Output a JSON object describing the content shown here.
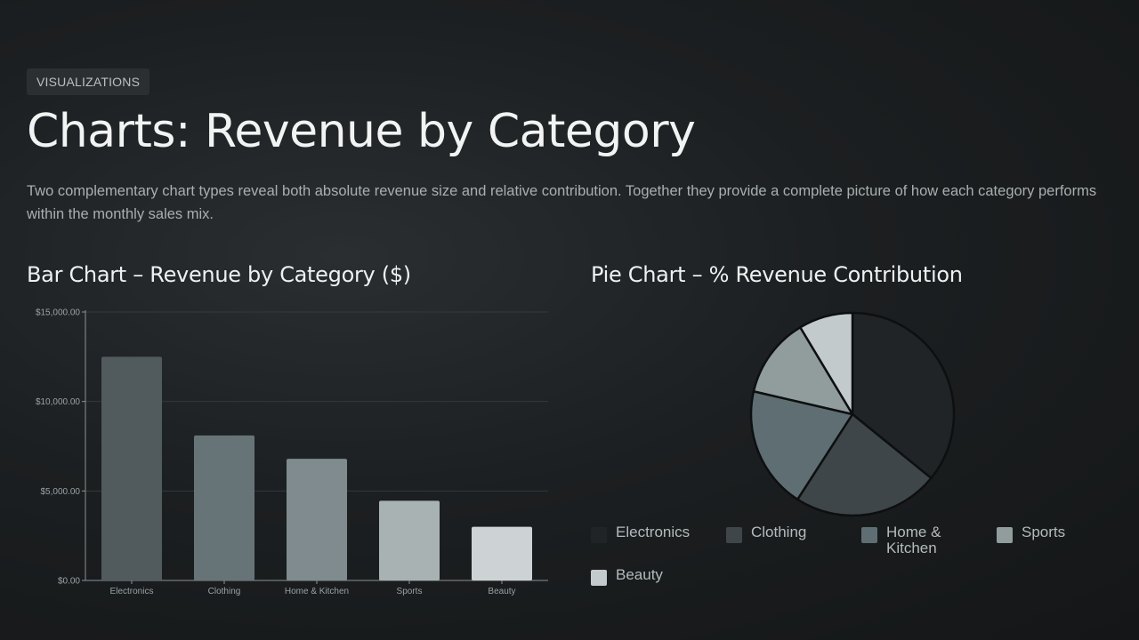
{
  "header": {
    "tag": "VISUALIZATIONS",
    "title": "Charts: Revenue by Category",
    "description": "Two complementary chart types reveal both absolute revenue size and relative contribution. Together they provide a complete picture of how each category performs within the monthly sales mix."
  },
  "chart_data": [
    {
      "type": "bar",
      "title": "Bar Chart – Revenue by Category ($)",
      "xlabel": "",
      "ylabel": "",
      "categories": [
        "Electronics",
        "Clothing",
        "Home & Kitchen",
        "Sports",
        "Beauty"
      ],
      "values": [
        12500,
        8100,
        6800,
        4450,
        3000
      ],
      "ylim": [
        0,
        15000
      ],
      "yticks": [
        0,
        5000,
        10000,
        15000
      ],
      "ytick_labels": [
        "$0.00",
        "$5,000.00",
        "$10,000.00",
        "$15,000.00"
      ],
      "grid": true,
      "colors": [
        "#515a5d",
        "#677477",
        "#7f8b8e",
        "#a8b2b2",
        "#cdd3d4"
      ]
    },
    {
      "type": "pie",
      "title": "Pie Chart – % Revenue Contribution",
      "labels": [
        "Electronics",
        "Clothing",
        "Home & Kitchen",
        "Sports",
        "Beauty"
      ],
      "values": [
        12500,
        8100,
        6800,
        4450,
        3000
      ],
      "legend": "bottom",
      "colors": [
        "#202426",
        "#3f4649",
        "#5f6e72",
        "#919c9d",
        "#c3cacb"
      ]
    }
  ]
}
